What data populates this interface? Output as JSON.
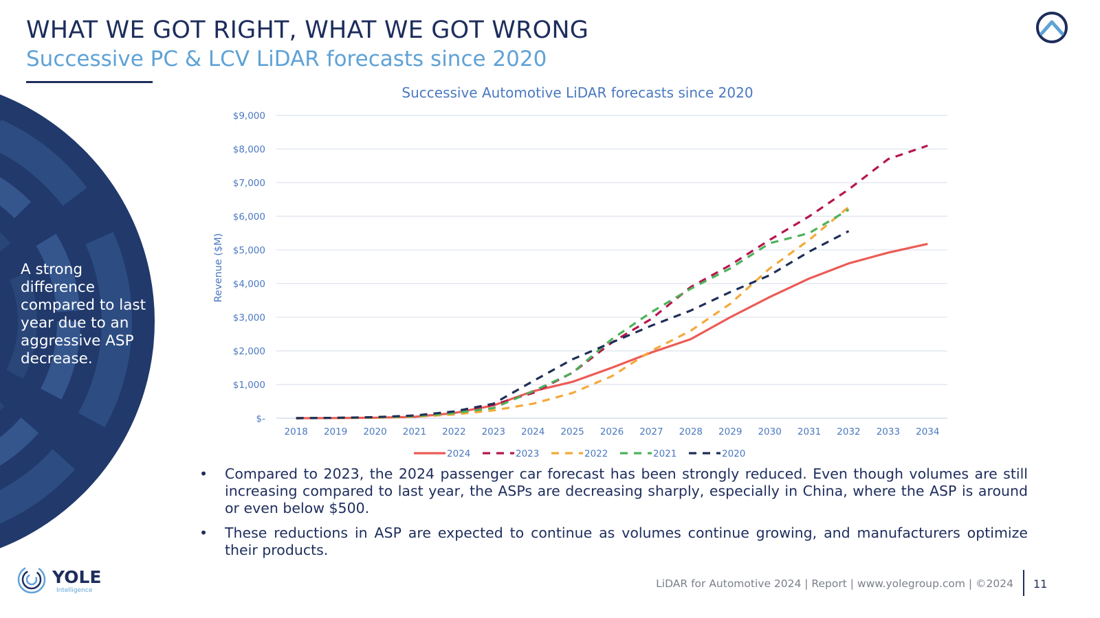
{
  "header": {
    "title": "WHAT WE GOT RIGHT, WHAT WE GOT WRONG",
    "subtitle": "Successive PC & LCV LiDAR forecasts since 2020"
  },
  "sidebar": {
    "text": "A strong difference compared to last year due to an aggressive ASP decrease."
  },
  "bullets": [
    "Compared to 2023, the 2024 passenger car forecast has been strongly reduced. Even though volumes are still increasing compared to last year, the ASPs are decreasing sharply, especially in China, where the ASP is around or even below $500.",
    "These reductions in ASP are expected to continue as volumes continue growing, and manufacturers optimize their products."
  ],
  "logo": {
    "name": "YOLE",
    "tagline": "Intelligence"
  },
  "footer": {
    "text": "LiDAR for Automotive 2024 | Report | www.yolegroup.com | ©2024",
    "page": "11"
  },
  "colors": {
    "navy": "#1d2d5c",
    "light_blue": "#5fa2d6",
    "series_2024": "#ec5b56",
    "series_2023": "#b5174f",
    "series_2022": "#f4a93a",
    "series_2021": "#4cb25a",
    "series_2020": "#1f2f57"
  },
  "chart_data": {
    "type": "line",
    "title": "Successive Automotive LiDAR forecasts since 2020",
    "ylabel": "Revenue ($M)",
    "xlabel": "",
    "x": [
      2018,
      2019,
      2020,
      2021,
      2022,
      2023,
      2024,
      2025,
      2026,
      2027,
      2028,
      2029,
      2030,
      2031,
      2032,
      2033,
      2034
    ],
    "ylim": [
      0,
      9000
    ],
    "yticks": [
      0,
      1000,
      2000,
      3000,
      4000,
      5000,
      6000,
      7000,
      8000,
      9000
    ],
    "ytick_labels": [
      "$-",
      "$1,000",
      "$2,000",
      "$3,000",
      "$4,000",
      "$5,000",
      "$6,000",
      "$7,000",
      "$8,000",
      "$9,000"
    ],
    "grid": true,
    "legend": "bottom",
    "series": [
      {
        "name": "2024",
        "style": "solid",
        "color": "#ec5b56",
        "x": [
          2018,
          2019,
          2020,
          2021,
          2022,
          2023,
          2024,
          2025,
          2026,
          2027,
          2028,
          2029,
          2030,
          2031,
          2032,
          2033,
          2034
        ],
        "values": [
          0,
          5,
          15,
          40,
          150,
          380,
          800,
          1080,
          1500,
          1950,
          2350,
          3000,
          3600,
          4150,
          4600,
          4920,
          5180
        ]
      },
      {
        "name": "2023",
        "style": "dashed",
        "color": "#b5174f",
        "x": [
          2018,
          2019,
          2020,
          2021,
          2022,
          2023,
          2024,
          2025,
          2026,
          2027,
          2028,
          2029,
          2030,
          2031,
          2032,
          2033,
          2034
        ],
        "values": [
          0,
          10,
          25,
          60,
          180,
          400,
          750,
          1350,
          2250,
          2950,
          3900,
          4550,
          5300,
          6000,
          6800,
          7700,
          8100
        ]
      },
      {
        "name": "2022",
        "style": "dashed",
        "color": "#f4a93a",
        "x": [
          2018,
          2019,
          2020,
          2021,
          2022,
          2023,
          2024,
          2025,
          2026,
          2027,
          2028,
          2029,
          2030,
          2031,
          2032
        ],
        "values": [
          0,
          5,
          15,
          40,
          110,
          230,
          430,
          750,
          1250,
          2000,
          2600,
          3400,
          4450,
          5300,
          6280
        ]
      },
      {
        "name": "2021",
        "style": "dashed",
        "color": "#4cb25a",
        "x": [
          2018,
          2019,
          2020,
          2021,
          2022,
          2023,
          2024,
          2025,
          2026,
          2027,
          2028,
          2029,
          2030,
          2031,
          2032
        ],
        "values": [
          0,
          10,
          25,
          60,
          150,
          300,
          800,
          1350,
          2350,
          3150,
          3850,
          4450,
          5200,
          5500,
          6200
        ]
      },
      {
        "name": "2020",
        "style": "dashed",
        "color": "#1f2f57",
        "x": [
          2018,
          2019,
          2020,
          2021,
          2022,
          2023,
          2024,
          2025,
          2026,
          2027,
          2028,
          2029,
          2030,
          2031,
          2032
        ],
        "values": [
          0,
          10,
          30,
          80,
          200,
          430,
          1100,
          1750,
          2250,
          2750,
          3200,
          3750,
          4250,
          4950,
          5560
        ]
      }
    ]
  }
}
